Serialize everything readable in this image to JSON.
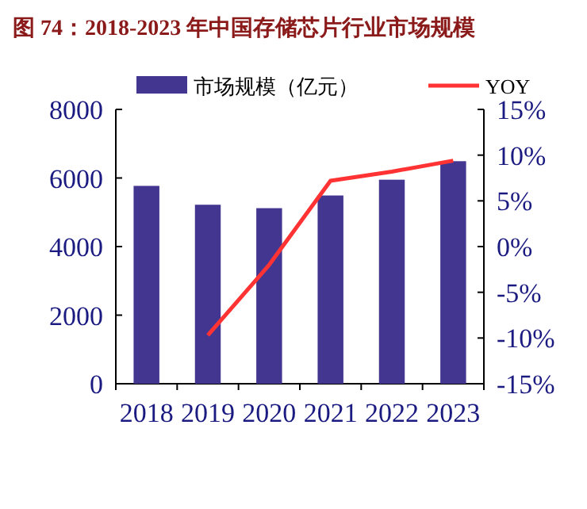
{
  "chart_data": {
    "type": "bar",
    "title": "图 74：2018-2023 年中国存储芯片行业市场规模",
    "categories": [
      "2018",
      "2019",
      "2020",
      "2021",
      "2022",
      "2023"
    ],
    "series": [
      {
        "name": "市场规模（亿元）",
        "color": "#433691",
        "values": [
          5770,
          5220,
          5120,
          5490,
          5950,
          6490
        ]
      },
      {
        "name": "YOY",
        "type": "line",
        "axis": "y2",
        "color": "#ff3333",
        "values": [
          null,
          -9.7,
          -2.0,
          7.2,
          8.2,
          9.4
        ]
      }
    ],
    "ylim": [
      0,
      8000
    ],
    "yticks": [
      0,
      2000,
      4000,
      6000,
      8000
    ],
    "y2lim": [
      -15,
      15
    ],
    "y2ticks": [
      {
        "value": -15,
        "label": "-15%"
      },
      {
        "value": -10,
        "label": "-10%"
      },
      {
        "value": -5,
        "label": "-5%"
      },
      {
        "value": 0,
        "label": "0%"
      },
      {
        "value": 5,
        "label": "5%"
      },
      {
        "value": 10,
        "label": "10%"
      },
      {
        "value": 15,
        "label": "15%"
      }
    ],
    "legend": "top"
  }
}
